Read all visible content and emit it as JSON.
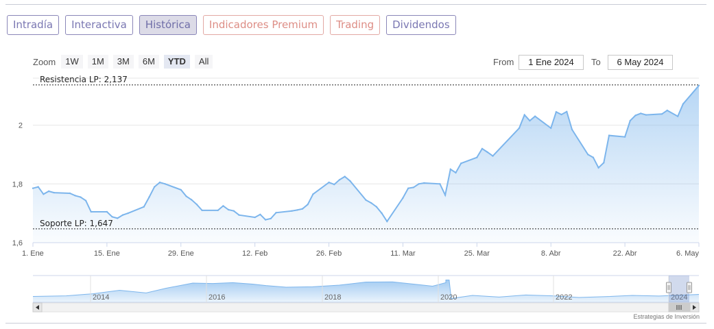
{
  "tabs": [
    {
      "label": "Intradía",
      "kind": "normal"
    },
    {
      "label": "Interactiva",
      "kind": "normal"
    },
    {
      "label": "Histórica",
      "kind": "active"
    },
    {
      "label": "Indicadores Premium",
      "kind": "premium"
    },
    {
      "label": "Trading",
      "kind": "premium"
    },
    {
      "label": "Dividendos",
      "kind": "normal"
    }
  ],
  "zoom": {
    "label": "Zoom",
    "buttons": [
      "1W",
      "1M",
      "3M",
      "6M",
      "YTD",
      "All"
    ],
    "active": "YTD"
  },
  "range": {
    "from_label": "From",
    "from_value": "1 Ene 2024",
    "to_label": "To",
    "to_value": "6 May 2024"
  },
  "credit": "Estrategias de Inversión",
  "colors": {
    "line": "#7cb5ec",
    "fill_top": "#7cb5ec",
    "tab_border": "#8a86b8",
    "tab_premium": "#dd8d85"
  },
  "chart_data": {
    "type": "area",
    "title": "",
    "xlabel": "",
    "ylabel": "",
    "ylim": [
      1.6,
      2.16
    ],
    "xlim": [
      "2024-01-01",
      "2024-05-06"
    ],
    "y_ticks": [
      {
        "value": 1.6,
        "label": "1,6"
      },
      {
        "value": 1.8,
        "label": "1,8"
      },
      {
        "value": 2.0,
        "label": "2"
      }
    ],
    "x_ticks": [
      {
        "date": "2024-01-01",
        "label": "1. Ene"
      },
      {
        "date": "2024-01-15",
        "label": "15. Ene"
      },
      {
        "date": "2024-01-29",
        "label": "29. Ene"
      },
      {
        "date": "2024-02-12",
        "label": "12. Feb"
      },
      {
        "date": "2024-02-26",
        "label": "26. Feb"
      },
      {
        "date": "2024-03-11",
        "label": "11. Mar"
      },
      {
        "date": "2024-03-25",
        "label": "25. Mar"
      },
      {
        "date": "2024-04-08",
        "label": "8. Abr"
      },
      {
        "date": "2024-04-22",
        "label": "22. Abr"
      },
      {
        "date": "2024-05-06",
        "label": "6. May"
      }
    ],
    "grid": true,
    "annotations": [
      {
        "label": "Resistencia LP: 2,137",
        "value": 2.137
      },
      {
        "label": "Soporte LP: 1,647",
        "value": 1.647
      }
    ],
    "series": [
      {
        "x": [
          "2024-01-01",
          "2024-01-02",
          "2024-01-03",
          "2024-01-04",
          "2024-01-05",
          "2024-01-08",
          "2024-01-09",
          "2024-01-10",
          "2024-01-11",
          "2024-01-12",
          "2024-01-15",
          "2024-01-16",
          "2024-01-17",
          "2024-01-18",
          "2024-01-19",
          "2024-01-22",
          "2024-01-23",
          "2024-01-24",
          "2024-01-25",
          "2024-01-26",
          "2024-01-29",
          "2024-01-30",
          "2024-01-31",
          "2024-02-01",
          "2024-02-02",
          "2024-02-05",
          "2024-02-06",
          "2024-02-07",
          "2024-02-08",
          "2024-02-09",
          "2024-02-12",
          "2024-02-13",
          "2024-02-14",
          "2024-02-15",
          "2024-02-16",
          "2024-02-19",
          "2024-02-20",
          "2024-02-21",
          "2024-02-22",
          "2024-02-23",
          "2024-02-26",
          "2024-02-27",
          "2024-02-28",
          "2024-02-29",
          "2024-03-01",
          "2024-03-04",
          "2024-03-05",
          "2024-03-06",
          "2024-03-07",
          "2024-03-08",
          "2024-03-11",
          "2024-03-12",
          "2024-03-13",
          "2024-03-14",
          "2024-03-15",
          "2024-03-18",
          "2024-03-19",
          "2024-03-20",
          "2024-03-21",
          "2024-03-22",
          "2024-03-25",
          "2024-03-26",
          "2024-03-27",
          "2024-03-28",
          "2024-04-02",
          "2024-04-03",
          "2024-04-04",
          "2024-04-05",
          "2024-04-08",
          "2024-04-09",
          "2024-04-10",
          "2024-04-11",
          "2024-04-12",
          "2024-04-15",
          "2024-04-16",
          "2024-04-17",
          "2024-04-18",
          "2024-04-19",
          "2024-04-22",
          "2024-04-23",
          "2024-04-24",
          "2024-04-25",
          "2024-04-26",
          "2024-04-29",
          "2024-04-30",
          "2024-05-02",
          "2024-05-03",
          "2024-05-06"
        ],
        "values": [
          1.785,
          1.79,
          1.765,
          1.775,
          1.77,
          1.768,
          1.76,
          1.755,
          1.743,
          1.705,
          1.705,
          1.688,
          1.683,
          1.694,
          1.7,
          1.722,
          1.755,
          1.79,
          1.805,
          1.8,
          1.78,
          1.758,
          1.746,
          1.73,
          1.71,
          1.71,
          1.725,
          1.712,
          1.708,
          1.694,
          1.686,
          1.696,
          1.678,
          1.682,
          1.702,
          1.708,
          1.711,
          1.715,
          1.73,
          1.765,
          1.805,
          1.798,
          1.814,
          1.825,
          1.81,
          1.745,
          1.735,
          1.722,
          1.7,
          1.672,
          1.752,
          1.785,
          1.788,
          1.8,
          1.803,
          1.8,
          1.762,
          1.85,
          1.838,
          1.87,
          1.89,
          1.92,
          1.908,
          1.895,
          1.99,
          2.035,
          2.015,
          2.03,
          1.99,
          2.045,
          2.036,
          2.046,
          1.985,
          1.9,
          1.89,
          1.855,
          1.872,
          1.965,
          1.96,
          2.015,
          2.033,
          2.04,
          2.035,
          2.038,
          2.05,
          2.03,
          2.072,
          2.135
        ]
      }
    ],
    "navigator": {
      "x_ticks": [
        "2014",
        "2016",
        "2018",
        "2020",
        "2022",
        "2024"
      ]
    }
  }
}
